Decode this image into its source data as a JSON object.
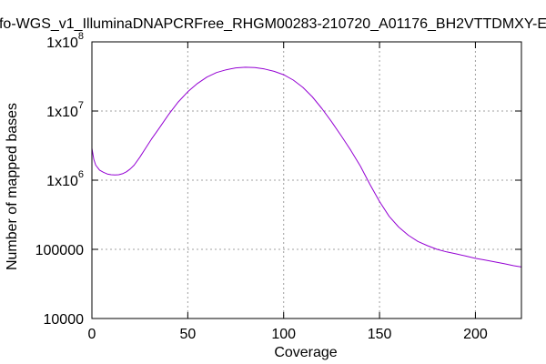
{
  "chart_data": {
    "type": "line",
    "title": "fo-WGS_v1_IlluminaDNAPCRFree_RHGM00283-210720_A01176_BH2VTTDMXY-E",
    "xlabel": "Coverage",
    "ylabel": "Number of mapped bases",
    "xlim": [
      0,
      224
    ],
    "ylim": [
      10000,
      100000000
    ],
    "yscale": "log",
    "grid": true,
    "legend": "none",
    "line_color": "#9400d3",
    "x_ticks": [
      {
        "value": 0,
        "label": "0"
      },
      {
        "value": 50,
        "label": "50"
      },
      {
        "value": 100,
        "label": "100"
      },
      {
        "value": 150,
        "label": "150"
      },
      {
        "value": 200,
        "label": "200"
      }
    ],
    "y_ticks": [
      {
        "value": 10000,
        "label": "10000",
        "base": "",
        "exp": ""
      },
      {
        "value": 100000,
        "label": "100000",
        "base": "",
        "exp": ""
      },
      {
        "value": 1000000,
        "label": "",
        "base": "1x10",
        "exp": "6"
      },
      {
        "value": 10000000,
        "label": "",
        "base": "1x10",
        "exp": "7"
      },
      {
        "value": 100000000,
        "label": "",
        "base": "1x10",
        "exp": "8"
      }
    ],
    "series": [
      {
        "x": [
          0,
          1,
          2,
          4,
          6,
          8,
          10,
          12,
          14,
          16,
          18,
          20,
          22,
          25,
          28,
          31,
          35,
          40,
          45,
          50,
          55,
          60,
          65,
          70,
          75,
          80,
          85,
          90,
          95,
          100,
          105,
          110,
          115,
          120,
          125,
          130,
          135,
          140,
          145,
          150,
          155,
          160,
          165,
          170,
          175,
          180,
          185,
          190,
          195,
          200,
          205,
          210,
          215,
          220,
          224
        ],
        "y": [
          2900000,
          2000000,
          1650000,
          1400000,
          1300000,
          1230000,
          1200000,
          1190000,
          1200000,
          1240000,
          1320000,
          1450000,
          1650000,
          2150000,
          2900000,
          3900000,
          5600000,
          8900000,
          13500000,
          19000000,
          25000000,
          31000000,
          36000000,
          39500000,
          42000000,
          43000000,
          42500000,
          40500000,
          37500000,
          33500000,
          28000000,
          22000000,
          16000000,
          10800000,
          7000000,
          4400000,
          2700000,
          1600000,
          870000,
          490000,
          300000,
          210000,
          160000,
          130000,
          113000,
          100000,
          92000,
          86000,
          80000,
          74000,
          70000,
          66000,
          62000,
          58000,
          55500
        ]
      }
    ]
  }
}
